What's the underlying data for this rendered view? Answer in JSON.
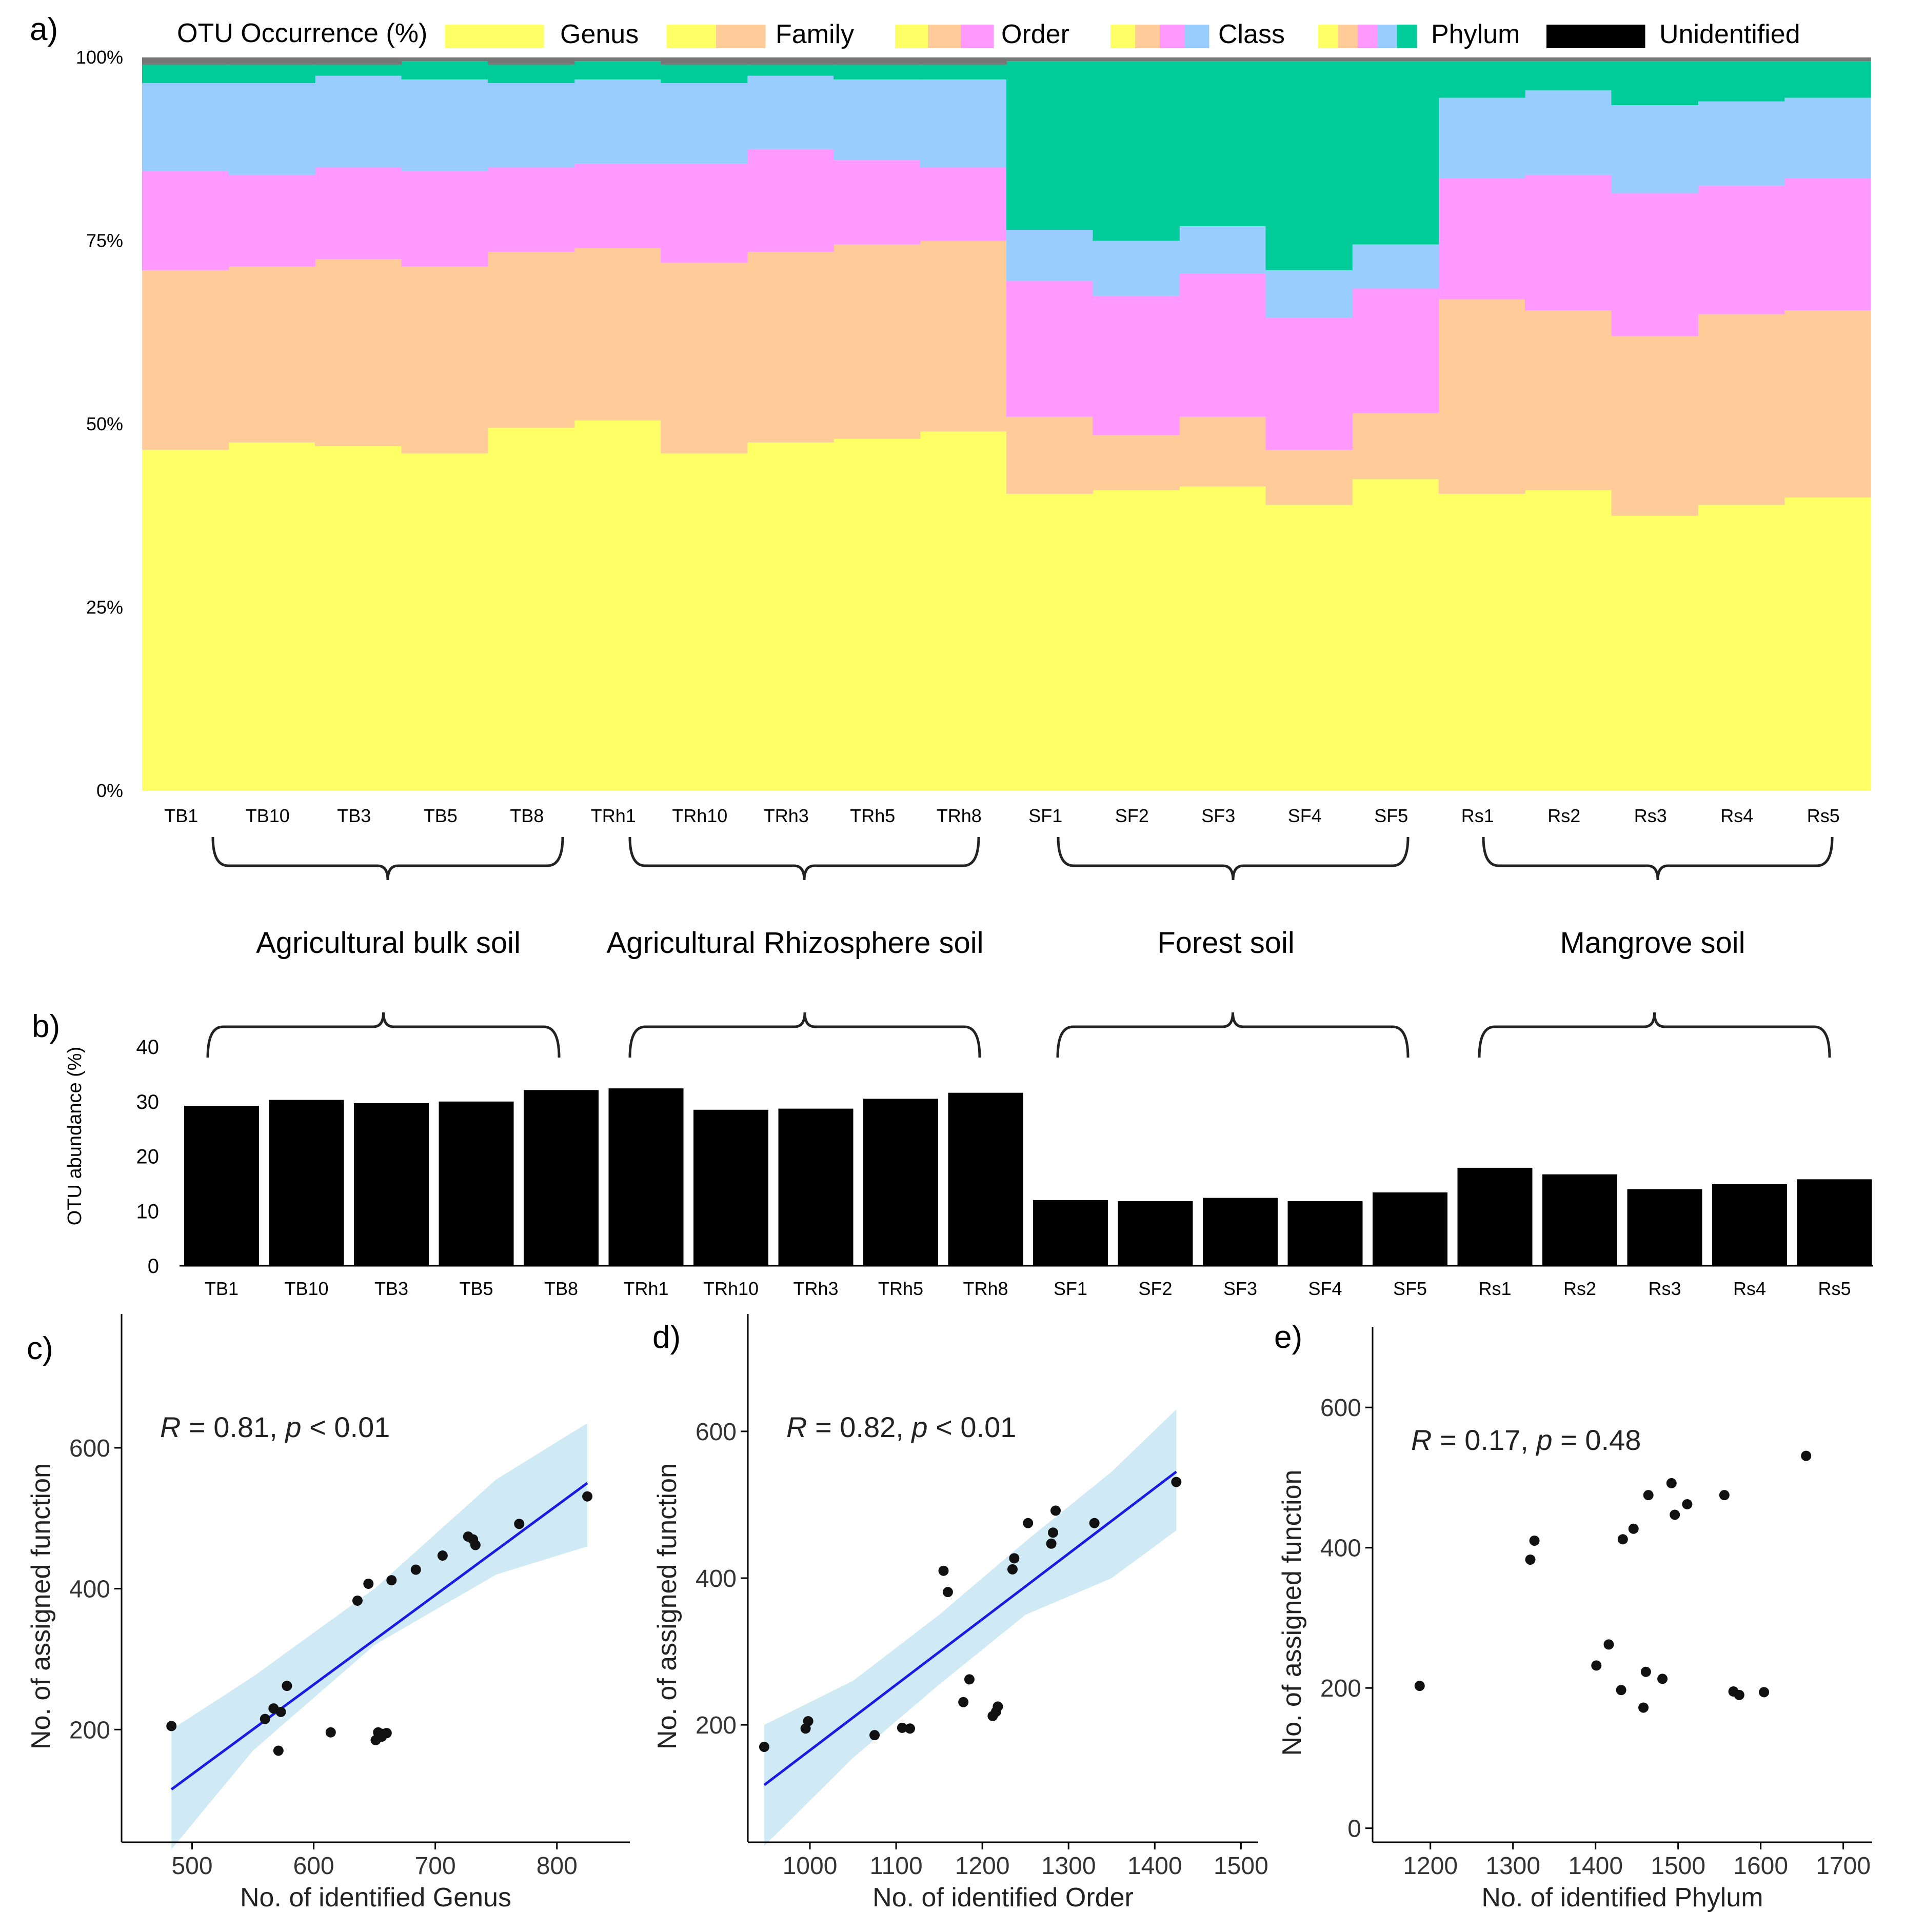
{
  "colors": {
    "genus": "#FFFF66",
    "family": "#FFCC99",
    "order": "#FF99FF",
    "class": "#99CCFF",
    "phylum": "#00CC99",
    "unidentified": "#000000",
    "topstrip": "#777777",
    "regression": "#1A1AE6",
    "ci_band": "#BFE3F2"
  },
  "panel_labels": [
    "a)",
    "b)",
    "c)",
    "d)",
    "e)"
  ],
  "legend": {
    "title": "OTU Occurrence (%)",
    "entries": [
      {
        "label": "Genus",
        "swatches": [
          "genus"
        ]
      },
      {
        "label": "Family",
        "swatches": [
          "genus",
          "family"
        ]
      },
      {
        "label": "Order",
        "swatches": [
          "genus",
          "family",
          "order"
        ]
      },
      {
        "label": "Class",
        "swatches": [
          "genus",
          "family",
          "order",
          "class"
        ]
      },
      {
        "label": "Phylum",
        "swatches": [
          "genus",
          "family",
          "order",
          "class",
          "phylum"
        ]
      },
      {
        "label": "Unidentified",
        "swatches": [
          "unidentified"
        ]
      }
    ]
  },
  "groups": [
    "Agricultural bulk soil",
    "Agricultural Rhizosphere soil",
    "Forest soil",
    "Mangrove soil"
  ],
  "chart_data": [
    {
      "id": "a",
      "type": "bar",
      "stacked": true,
      "ylabel": "",
      "ylim": [
        0,
        100
      ],
      "yticks": [
        "0%",
        "25%",
        "50%",
        "75%",
        "100%"
      ],
      "categories": [
        "TB1",
        "TB10",
        "TB3",
        "TB5",
        "TB8",
        "TRh1",
        "TRh10",
        "TRh3",
        "TRh5",
        "TRh8",
        "SF1",
        "SF2",
        "SF3",
        "SF4",
        "SF5",
        "Rs1",
        "Rs2",
        "Rs3",
        "Rs4",
        "Rs5"
      ],
      "series": [
        {
          "name": "Genus",
          "color": "genus",
          "values": [
            46.5,
            47.5,
            47,
            46,
            49.5,
            50.5,
            46,
            47.5,
            48,
            49,
            40.5,
            41,
            41.5,
            39,
            42.5,
            40.5,
            41,
            37.5,
            39,
            40
          ]
        },
        {
          "name": "Family",
          "color": "family",
          "values": [
            24.5,
            24,
            25.5,
            25.5,
            24,
            23.5,
            26,
            26,
            26.5,
            26,
            10.5,
            7.5,
            9.5,
            7.5,
            9,
            26.5,
            24.5,
            24.5,
            26,
            25.5
          ]
        },
        {
          "name": "Order",
          "color": "order",
          "values": [
            13.5,
            12.5,
            12.5,
            13,
            11.5,
            11.5,
            13.5,
            14,
            11.5,
            10,
            18.5,
            19,
            19.5,
            18,
            17,
            16.5,
            18.5,
            19.5,
            17.5,
            18
          ]
        },
        {
          "name": "Class",
          "color": "class",
          "values": [
            12,
            12.5,
            12.5,
            12.5,
            11.5,
            11.5,
            11,
            10,
            11,
            12,
            7,
            7.5,
            6.5,
            6.5,
            6,
            11,
            11.5,
            12,
            11.5,
            11
          ]
        },
        {
          "name": "Phylum",
          "color": "phylum",
          "values": [
            2.5,
            2.5,
            1.5,
            2.5,
            2.5,
            2.5,
            2.5,
            1.5,
            2,
            2,
            23,
            24.5,
            22.5,
            28.5,
            25,
            5,
            4,
            6,
            5.5,
            5
          ]
        },
        {
          "name": "Unidentified",
          "color": "topstrip",
          "values": [
            1,
            1,
            1,
            0.5,
            1,
            0.5,
            1,
            1,
            1,
            1,
            0.5,
            0.5,
            0.5,
            0.5,
            0.5,
            0.5,
            0.5,
            0.5,
            0.5,
            0.5
          ]
        }
      ]
    },
    {
      "id": "b",
      "type": "bar",
      "ylabel": "OTU abundance (%)",
      "ylim": [
        0,
        40
      ],
      "yticks": [
        "0",
        "10",
        "20",
        "30",
        "40"
      ],
      "categories": [
        "TB1",
        "TB10",
        "TB3",
        "TB5",
        "TB8",
        "TRh1",
        "TRh10",
        "TRh3",
        "TRh5",
        "TRh8",
        "SF1",
        "SF2",
        "SF3",
        "SF4",
        "SF5",
        "Rs1",
        "Rs2",
        "Rs3",
        "Rs4",
        "Rs5"
      ],
      "values": [
        29.2,
        30.3,
        29.7,
        30,
        32.1,
        32.4,
        28.5,
        28.7,
        30.5,
        31.6,
        12,
        11.8,
        12.4,
        11.8,
        13.4,
        17.9,
        16.7,
        14,
        14.9,
        15.8
      ]
    },
    {
      "id": "c",
      "type": "scatter",
      "xlabel": "No. of identified Genus",
      "ylabel": "No. of assigned function",
      "xlim": [
        442,
        860
      ],
      "ylim": [
        40,
        790
      ],
      "xticks": [
        500,
        600,
        700,
        800
      ],
      "yticks": [
        200,
        400,
        600
      ],
      "annotation": {
        "r": "R",
        "r_text": " = 0.81, ",
        "p": "p",
        "p_text": " < 0.01"
      },
      "fit": {
        "x": [
          483,
          825
        ],
        "y": [
          115,
          550
        ]
      },
      "ci": {
        "x": [
          483,
          550,
          650,
          750,
          825
        ],
        "lower": [
          30,
          170,
          320,
          420,
          460
        ],
        "upper": [
          200,
          275,
          400,
          555,
          635
        ]
      },
      "points": {
        "x": [
          483,
          571,
          560,
          567,
          573,
          578,
          614,
          636,
          645,
          664,
          684,
          706,
          727,
          733,
          731,
          769,
          825,
          651,
          653,
          656,
          656,
          660
        ],
        "y": [
          205,
          170,
          215,
          230,
          225,
          262,
          196,
          383,
          407,
          412,
          427,
          447,
          474,
          462,
          470,
          492,
          531,
          185,
          196,
          190,
          194,
          195
        ]
      }
    },
    {
      "id": "d",
      "type": "scatter",
      "xlabel": "No. of identified Order",
      "ylabel": "No. of assigned function",
      "xlim": [
        928,
        1520
      ],
      "ylim": [
        40,
        760
      ],
      "xticks": [
        1000,
        1100,
        1200,
        1300,
        1400,
        1500
      ],
      "yticks": [
        200,
        400,
        600
      ],
      "annotation": {
        "r": "R",
        "r_text": " = 0.82, ",
        "p": "p",
        "p_text": " < 0.01"
      },
      "fit": {
        "x": [
          947,
          1425
        ],
        "y": [
          118,
          545
        ]
      },
      "ci": {
        "x": [
          947,
          1050,
          1150,
          1250,
          1350,
          1425
        ],
        "lower": [
          35,
          155,
          255,
          350,
          400,
          465
        ],
        "upper": [
          200,
          260,
          350,
          450,
          545,
          630
        ]
      },
      "points": {
        "x": [
          947,
          995,
          998,
          1075,
          1107,
          1116,
          1155,
          1160,
          1178,
          1185,
          1212,
          1216,
          1218,
          1235,
          1237,
          1253,
          1280,
          1282,
          1285,
          1330,
          1425
        ],
        "y": [
          170,
          195,
          205,
          186,
          196,
          195,
          410,
          381,
          231,
          262,
          212,
          218,
          225,
          412,
          427,
          475,
          447,
          462,
          492,
          475,
          531
        ]
      }
    },
    {
      "id": "e",
      "type": "scatter",
      "xlabel": "No. of identified Phylum",
      "ylabel": "No. of assigned function",
      "xlim": [
        1130,
        1735
      ],
      "ylim": [
        -20,
        715
      ],
      "xticks": [
        1200,
        1300,
        1400,
        1500,
        1600,
        1700
      ],
      "yticks": [
        0,
        200,
        400,
        600
      ],
      "annotation": {
        "r": "R",
        "r_text": " = 0.17, ",
        "p": "p",
        "p_text": " = 0.48"
      },
      "points": {
        "x": [
          1187,
          1321,
          1326,
          1401,
          1416,
          1431,
          1433,
          1446,
          1458,
          1461,
          1464,
          1481,
          1492,
          1496,
          1511,
          1556,
          1567,
          1574,
          1604,
          1655
        ],
        "y": [
          203,
          383,
          410,
          232,
          262,
          197,
          412,
          427,
          172,
          223,
          475,
          213,
          492,
          447,
          462,
          475,
          195,
          190,
          194,
          531
        ]
      }
    }
  ]
}
